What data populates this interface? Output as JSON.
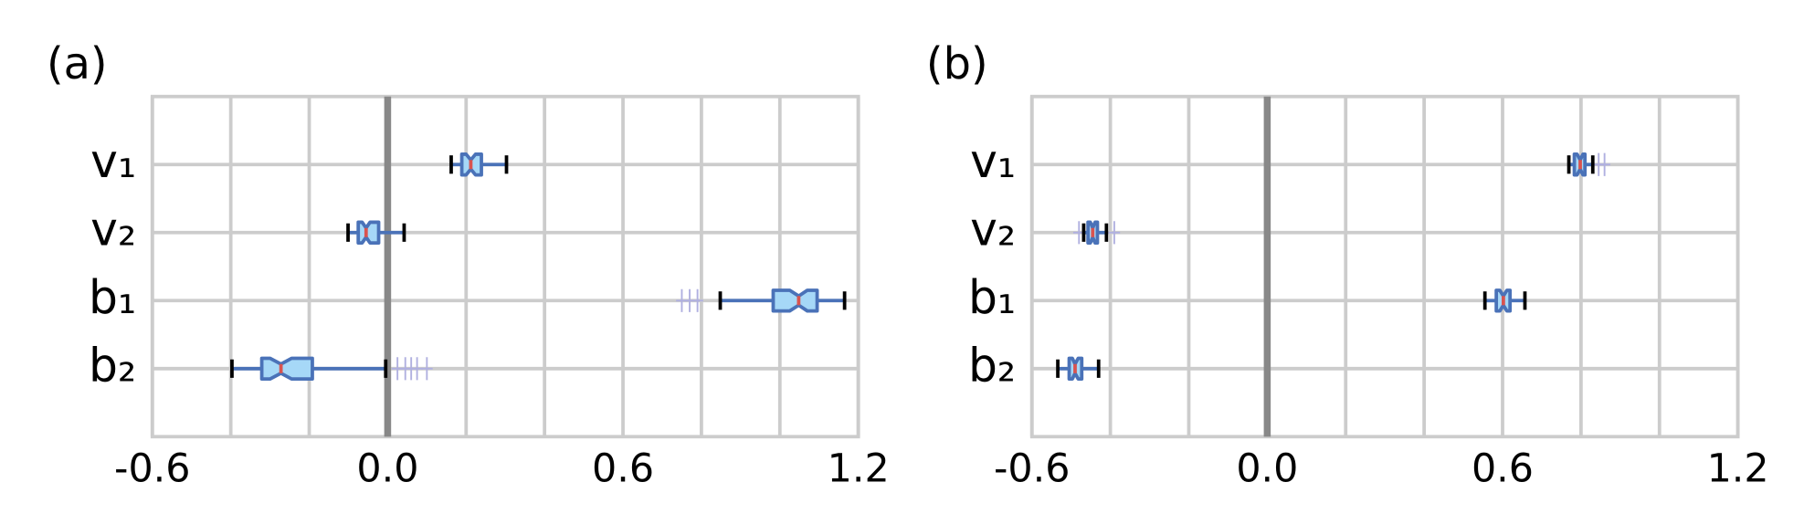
{
  "chart_data": [
    {
      "type": "box",
      "title": "(a)",
      "categories": [
        "v₁",
        "v₂",
        "b₁",
        "b₂"
      ],
      "xlim": [
        -0.6,
        1.2
      ],
      "xticks": [
        -0.6,
        {
          "value": 0,
          "label": "0.0"
        },
        0.6,
        1.2
      ],
      "xgrid": [
        -0.6,
        -0.4,
        -0.2,
        0,
        0.2,
        0.4,
        0.6,
        0.8,
        1.0,
        1.2
      ],
      "grid": true,
      "zero_line": 0,
      "box_color": "#a6d8f7",
      "edge_color": "#4a72b8",
      "median_color": "#d9534f",
      "cap_color": "#000000",
      "outlier_color": "#b0b0e0",
      "grid_color": "#cccccc",
      "zero_color": "#888888",
      "boxes": [
        {
          "low": 0.162,
          "q1": 0.189,
          "notch_low": 0.2,
          "median": 0.212,
          "notch_high": 0.224,
          "q3": 0.239,
          "high": 0.303,
          "outliers": []
        },
        {
          "low": -0.101,
          "q1": -0.075,
          "notch_low": -0.065,
          "median": -0.055,
          "notch_high": -0.045,
          "q3": -0.023,
          "high": 0.042,
          "outliers": []
        },
        {
          "low": 0.848,
          "q1": 0.983,
          "notch_low": 1.025,
          "median": 1.048,
          "notch_high": 1.07,
          "q3": 1.095,
          "high": 1.165,
          "outliers": [
            0.75,
            0.77,
            0.79
          ]
        },
        {
          "low": -0.397,
          "q1": -0.321,
          "notch_low": -0.3,
          "median": -0.272,
          "notch_high": -0.245,
          "q3": -0.192,
          "high": -0.005,
          "outliers": [
            0.025,
            0.045,
            0.06,
            0.075,
            0.1
          ]
        }
      ]
    },
    {
      "type": "box",
      "title": "(b)",
      "categories": [
        "v₁",
        "v₂",
        "b₁",
        "b₂"
      ],
      "xlim": [
        -0.6,
        1.2
      ],
      "xticks": [
        -0.6,
        {
          "value": 0,
          "label": "0.0"
        },
        0.6,
        1.2
      ],
      "xgrid": [
        -0.6,
        -0.4,
        -0.2,
        0,
        0.2,
        0.4,
        0.6,
        0.8,
        1.0,
        1.2
      ],
      "grid": true,
      "zero_line": 0,
      "box_color": "#a6d8f7",
      "edge_color": "#4a72b8",
      "median_color": "#d9534f",
      "cap_color": "#000000",
      "outlier_color": "#b0b0e0",
      "grid_color": "#cccccc",
      "zero_color": "#888888",
      "boxes": [
        {
          "low": 0.769,
          "q1": 0.783,
          "notch_low": 0.79,
          "median": 0.798,
          "notch_high": 0.805,
          "q3": 0.81,
          "high": 0.83,
          "outliers": [
            0.845,
            0.86
          ]
        },
        {
          "low": -0.468,
          "q1": -0.457,
          "notch_low": -0.451,
          "median": -0.445,
          "notch_high": -0.439,
          "q3": -0.433,
          "high": -0.41,
          "outliers": [
            -0.48,
            -0.39
          ]
        },
        {
          "low": 0.555,
          "q1": 0.584,
          "notch_low": 0.593,
          "median": 0.602,
          "notch_high": 0.611,
          "q3": 0.619,
          "high": 0.657,
          "outliers": []
        },
        {
          "low": -0.534,
          "q1": -0.505,
          "notch_low": -0.497,
          "median": -0.49,
          "notch_high": -0.482,
          "q3": -0.473,
          "high": -0.43,
          "outliers": []
        }
      ]
    }
  ]
}
